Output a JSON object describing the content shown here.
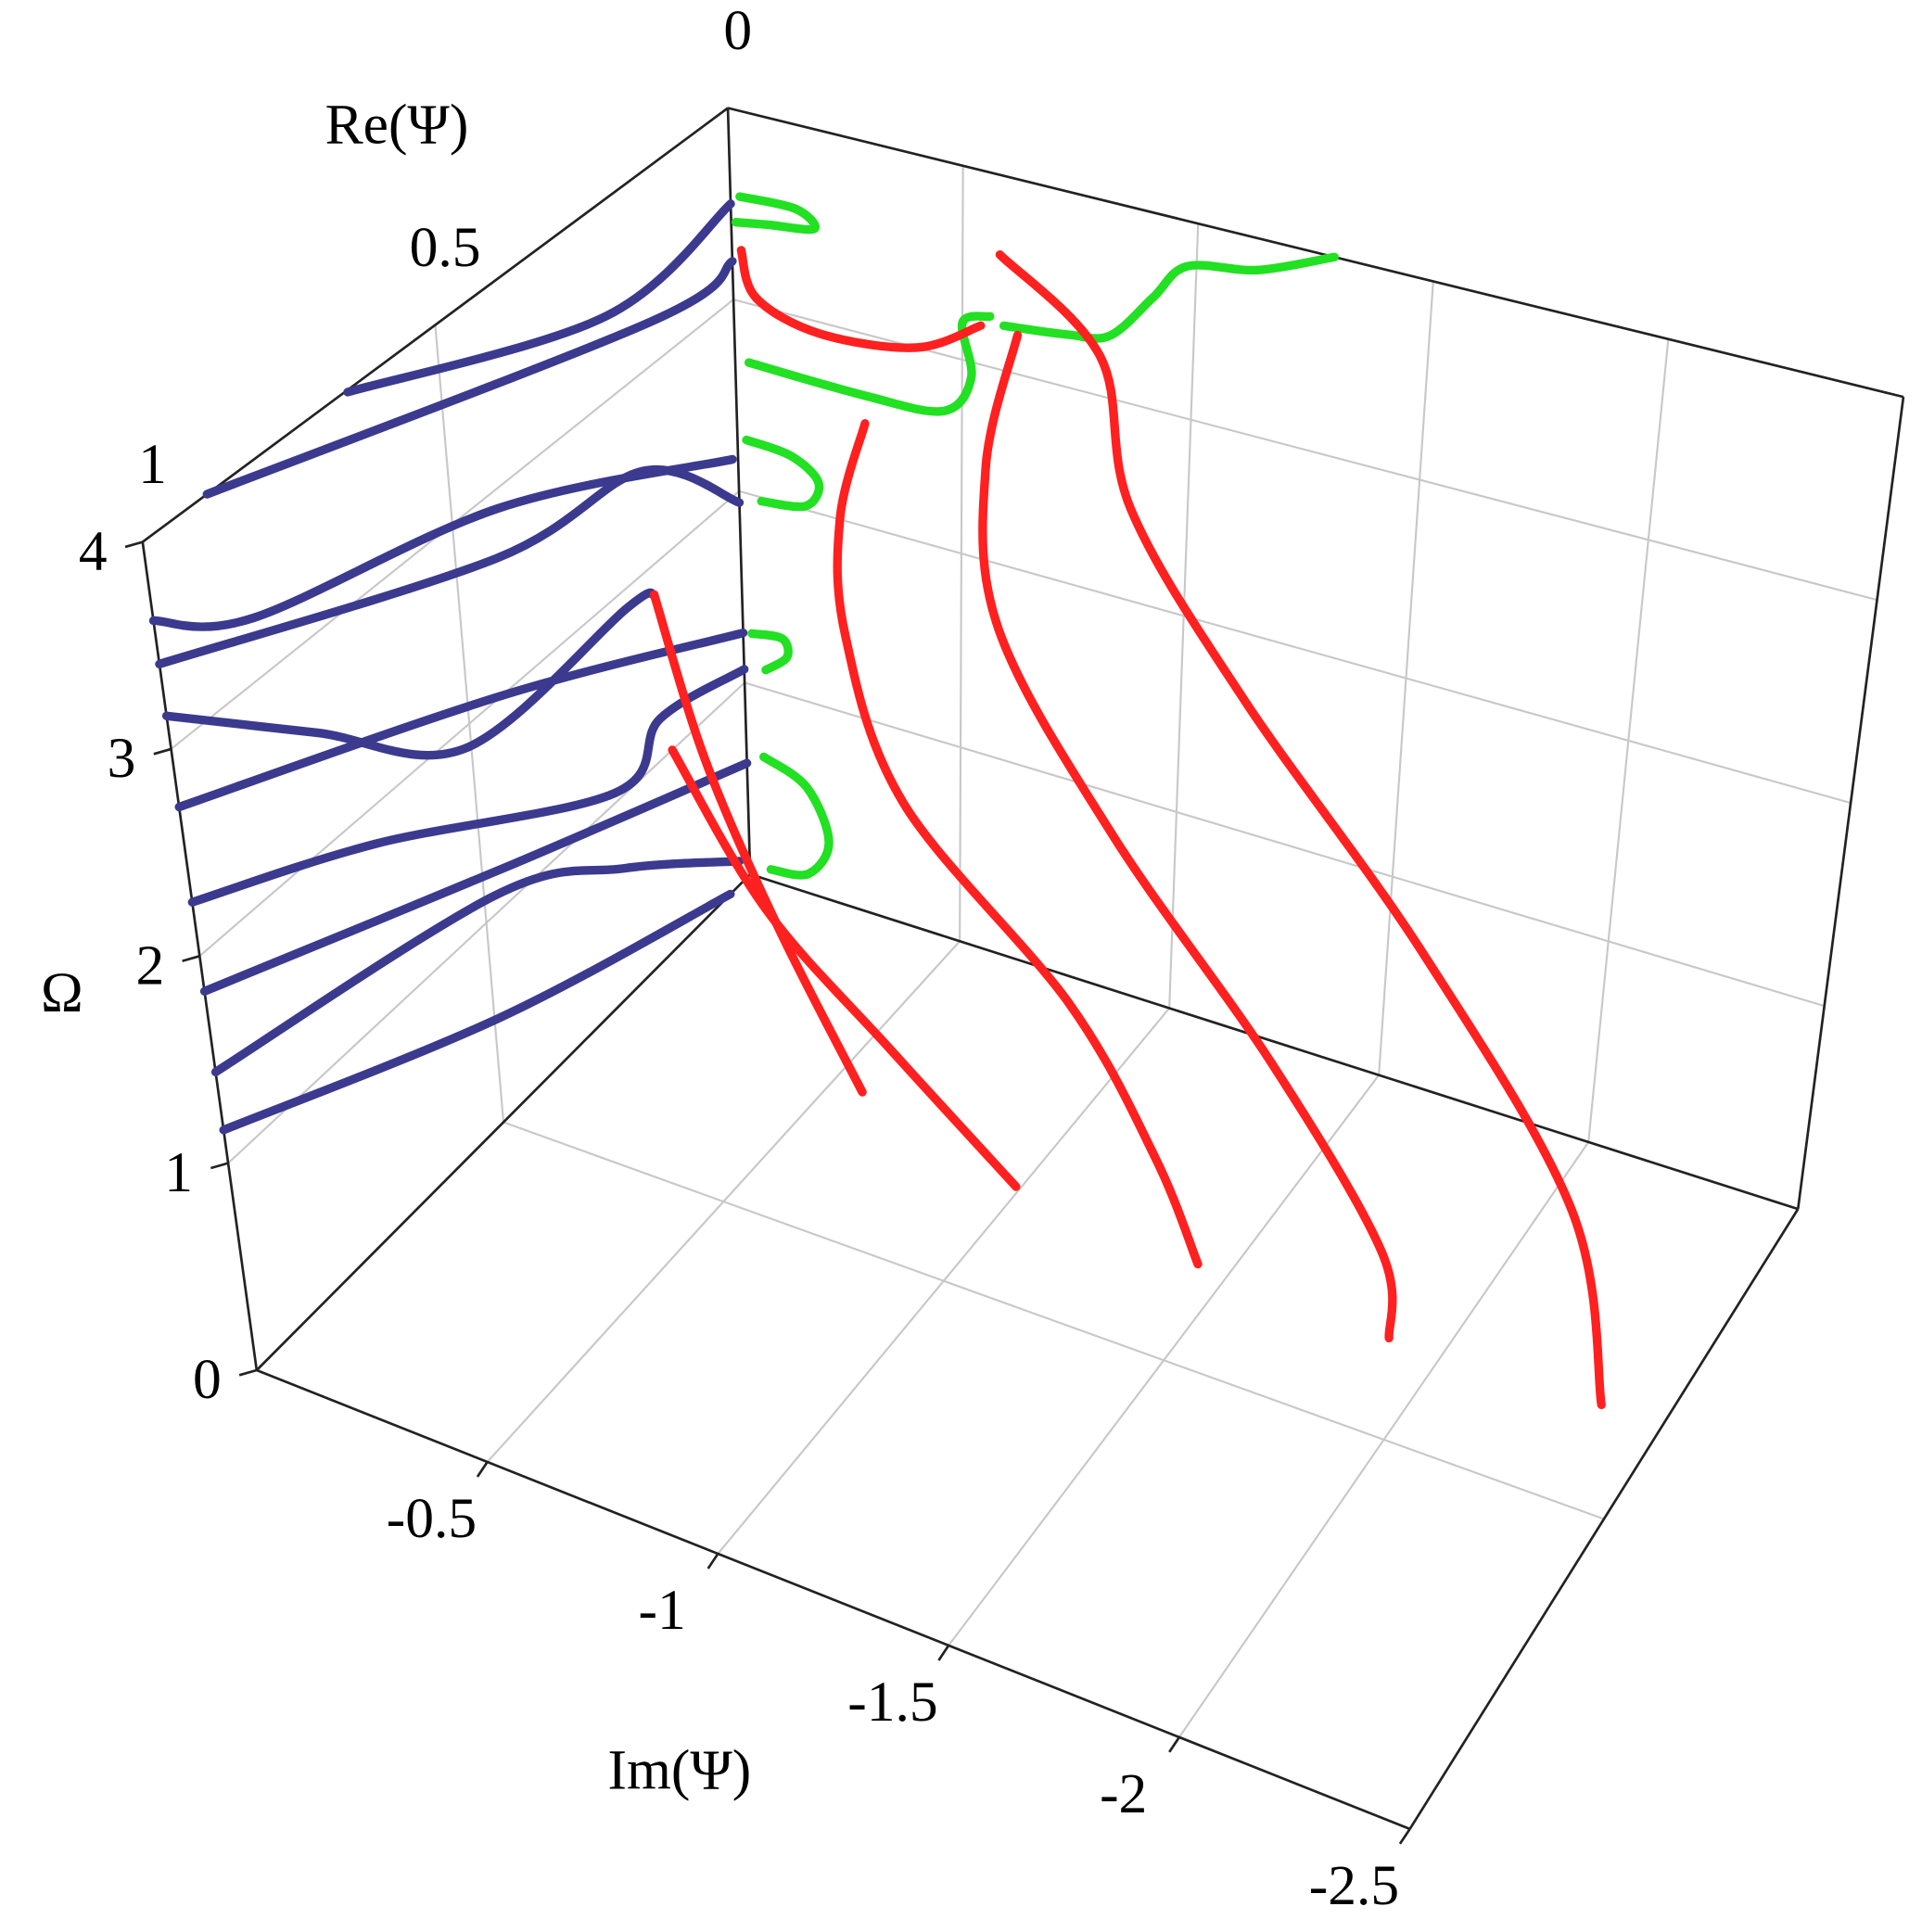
{
  "chart_data": {
    "type": "3d-line",
    "x_label": "Im(Ψ)",
    "y_label": "Re(Ψ)",
    "z_label": "Ω",
    "xlim": [
      0,
      -2.5
    ],
    "xticks": [
      -0.5,
      -1,
      -1.5,
      -2,
      -2.5
    ],
    "ylim": [
      0,
      1
    ],
    "yticks": [
      0,
      0.5,
      1
    ],
    "zlim": [
      0,
      4
    ],
    "zticks": [
      0,
      1,
      2,
      3,
      4
    ],
    "grid": true,
    "series": [
      {
        "color": "#3b3a8f",
        "x": [
          0,
          0,
          0
        ],
        "y": [
          0.65,
          0.22,
          0.0
        ],
        "z": [
          3.99,
          3.42,
          3.5
        ]
      },
      {
        "color": "#3b3a8f",
        "x": [
          0,
          0,
          0
        ],
        "y": [
          0.89,
          0.145,
          0.0
        ],
        "z": [
          4.0,
          3.22,
          3.2
        ]
      },
      {
        "color": "#3b3a8f",
        "x": [
          0,
          0,
          0,
          0
        ],
        "y": [
          1,
          0.84,
          0.42,
          0.01
        ],
        "z": [
          3.62,
          3.29,
          2.9,
          2.19
        ]
      },
      {
        "color": "#3b3a8f",
        "x": [
          0,
          0,
          0,
          0
        ],
        "y": [
          1,
          0.43,
          0.17,
          0.0
        ],
        "z": [
          3.41,
          2.67,
          2.51,
          1.94
        ]
      },
      {
        "color": "#3b3a8f",
        "x": [
          0,
          0,
          0,
          0,
          0
        ],
        "y": [
          1,
          0.76,
          0.51,
          0.21,
          0.16
        ],
        "z": [
          3.16,
          2.55,
          1.9,
          1.9,
          1.85
        ]
      },
      {
        "color": "#3b3a8f",
        "x": [
          0,
          0,
          0
        ],
        "y": [
          1,
          0.44,
          0.0
        ],
        "z": [
          2.72,
          2.0,
          1.26
        ]
      },
      {
        "color": "#3b3a8f",
        "x": [
          0,
          0,
          0,
          0,
          0
        ],
        "y": [
          1,
          0.68,
          0.25,
          0.16,
          0.0
        ],
        "z": [
          2.26,
          1.82,
          1.05,
          1.21,
          1.07
        ]
      },
      {
        "color": "#3b3a8f",
        "x": [
          0,
          0,
          0
        ],
        "y": [
          1,
          0.46,
          0.0
        ],
        "z": [
          1.83,
          1.18,
          0.58
        ]
      },
      {
        "color": "#3b3a8f",
        "x": [
          0,
          0,
          0,
          0
        ],
        "y": [
          1,
          0.48,
          0.24,
          0.02
        ],
        "z": [
          1.44,
          1.09,
          0.64,
          0.12
        ]
      },
      {
        "color": "#3b3a8f",
        "x": [
          0,
          0,
          0
        ],
        "y": [
          1,
          0.49,
          0.04
        ],
        "z": [
          1.16,
          0.5,
          0.0
        ]
      },
      {
        "color": "#22e022",
        "x": [
          -0.02,
          -0.14,
          -0.18,
          -0.08,
          -0.01
        ],
        "y": [
          0,
          0,
          0,
          0,
          0
        ],
        "z": [
          3.55,
          3.56,
          3.48,
          3.44,
          3.41
        ]
      },
      {
        "color": "#22e022",
        "x": [
          -0.03,
          -0.29,
          -0.46,
          -0.52,
          -0.5,
          -0.56
        ],
        "y": [
          0,
          0,
          0,
          0,
          0,
          0
        ],
        "z": [
          2.69,
          2.68,
          2.71,
          2.92,
          3.19,
          3.26
        ]
      },
      {
        "color": "#22e022",
        "x": [
          -0.59,
          -0.73,
          -0.82,
          -0.91,
          -0.98,
          -1.13,
          -1.29
        ],
        "y": [
          0,
          0,
          0,
          0,
          0,
          0,
          0
        ],
        "z": [
          3.23,
          3.27,
          3.32,
          3.57,
          3.77,
          3.84,
          4.0
        ]
      },
      {
        "color": "#22e022",
        "x": [
          -0.02,
          -0.12,
          -0.18,
          -0.15,
          -0.05
        ],
        "y": [
          0,
          0,
          0,
          0,
          0
        ],
        "z": [
          2.28,
          2.26,
          2.16,
          2.02,
          1.98
        ]
      },
      {
        "color": "#22e022",
        "x": [
          -0.02,
          -0.09,
          -0.1,
          -0.05
        ],
        "y": [
          0,
          0,
          0,
          0
        ],
        "z": [
          1.27,
          1.29,
          1.2,
          1.1
        ]
      },
      {
        "color": "#22e022",
        "x": [
          -0.04,
          -0.14,
          -0.19,
          -0.14,
          -0.05
        ],
        "y": [
          0,
          0,
          0,
          0,
          0
        ],
        "z": [
          0.64,
          0.55,
          0.3,
          0.1,
          0.06
        ]
      },
      {
        "color": "#ff2020",
        "x": [
          -0.02,
          -0.05,
          -0.19,
          -0.4,
          -0.54
        ],
        "y": [
          0,
          0,
          0,
          0,
          0
        ],
        "z": [
          3.27,
          3.04,
          2.94,
          3.0,
          3.2
        ]
      },
      {
        "color": "#ff2020",
        "x": [
          0,
          -0.15,
          -0.35,
          -0.57
        ],
        "y": [
          0.16,
          0.2,
          0.24,
          0.27
        ],
        "z": [
          1.85,
          1.2,
          0.6,
          0
        ]
      },
      {
        "color": "#ff2020",
        "x": [
          0,
          -0.3,
          -0.65,
          -0.99
        ],
        "y": [
          0.14,
          0.22,
          0.28,
          0.33
        ],
        "z": [
          1.0,
          0.6,
          0.3,
          0
        ]
      },
      {
        "color": "#ff2020",
        "x": [
          -0.31,
          -0.3,
          -0.38,
          -0.6,
          -1.05,
          -1.3,
          -1.43
        ],
        "y": [
          0.02,
          0.06,
          0.12,
          0.2,
          0.27,
          0.32,
          0.35
        ],
        "z": [
          2.6,
          2.2,
          1.8,
          1.3,
          0.8,
          0.35,
          0
        ]
      },
      {
        "color": "#ff2020",
        "x": [
          -0.62,
          -0.6,
          -0.7,
          -1.05,
          -1.5,
          -1.83,
          -1.88
        ],
        "y": [
          0,
          0.04,
          0.1,
          0.18,
          0.26,
          0.33,
          0.36
        ],
        "z": [
          3.2,
          2.6,
          2.0,
          1.4,
          0.8,
          0.3,
          0
        ]
      },
      {
        "color": "#ff2020",
        "x": [
          -0.58,
          -0.8,
          -0.92,
          -1.25,
          -1.75,
          -2.2,
          -2.36
        ],
        "y": [
          0,
          0,
          0.04,
          0.1,
          0.18,
          0.27,
          0.35
        ],
        "z": [
          3.59,
          3.2,
          2.6,
          2.0,
          1.3,
          0.6,
          0
        ]
      }
    ]
  }
}
